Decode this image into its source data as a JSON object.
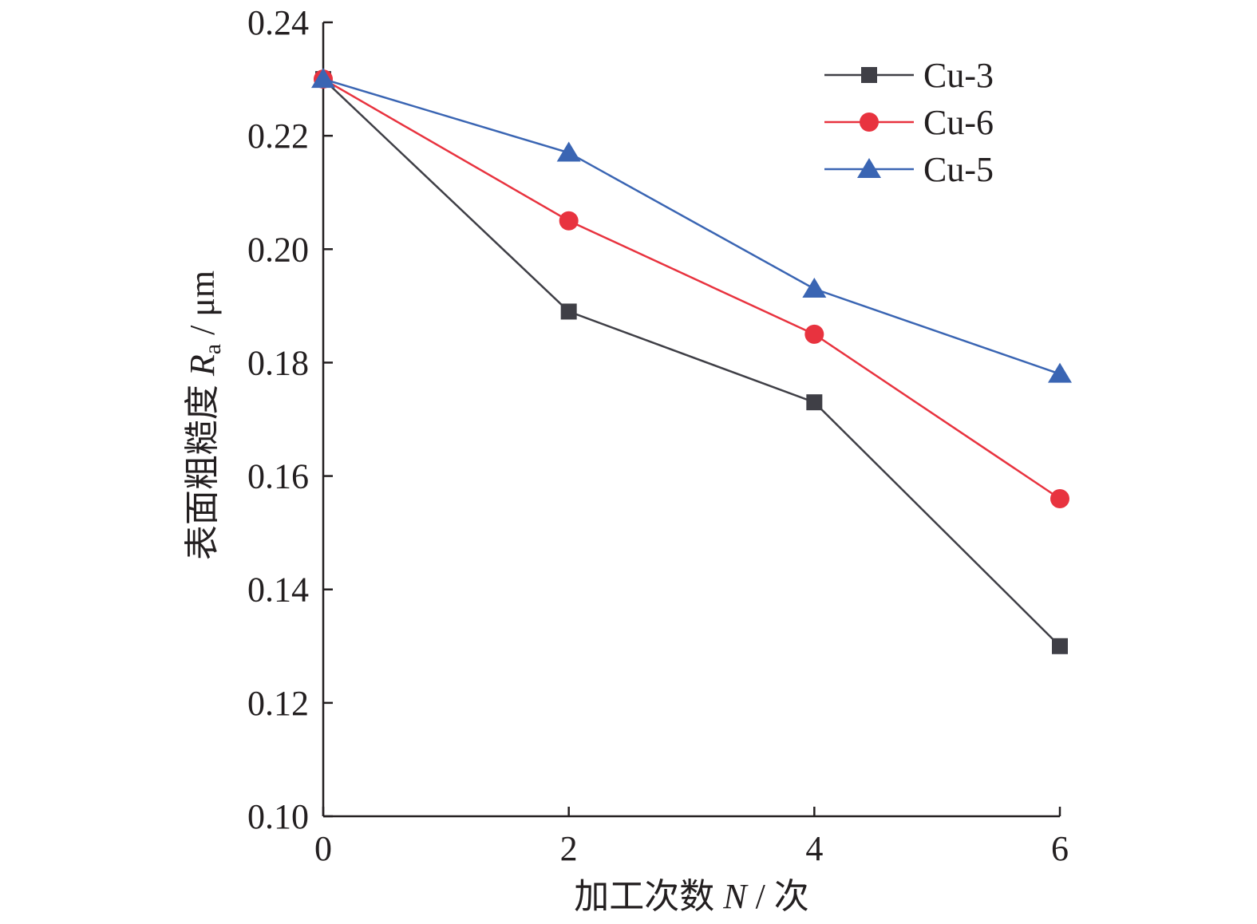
{
  "chart_data": {
    "type": "line",
    "x": [
      0,
      2,
      4,
      6
    ],
    "x_ticks": [
      "0",
      "2",
      "4",
      "6"
    ],
    "y_ticks": [
      "0.10",
      "0.12",
      "0.14",
      "0.16",
      "0.18",
      "0.20",
      "0.22",
      "0.24"
    ],
    "xlim": [
      0,
      6
    ],
    "ylim": [
      0.1,
      0.24
    ],
    "xlabel": "加工次数 N / 次",
    "ylabel_parts": {
      "prefix": "表面粗糙度 ",
      "symbol": "R",
      "subscript": "a",
      "unit": " / μm"
    },
    "grid": false,
    "legend_position": "top-right",
    "series": [
      {
        "name": "Cu-3",
        "values": [
          0.23,
          0.189,
          0.173,
          0.13
        ],
        "color": "#3f3f46",
        "marker": "square"
      },
      {
        "name": "Cu-6",
        "values": [
          0.23,
          0.205,
          0.185,
          0.156
        ],
        "color": "#e8333f",
        "marker": "circle"
      },
      {
        "name": "Cu-5",
        "values": [
          0.23,
          0.217,
          0.193,
          0.178
        ],
        "color": "#3a65b3",
        "marker": "triangle"
      }
    ]
  }
}
